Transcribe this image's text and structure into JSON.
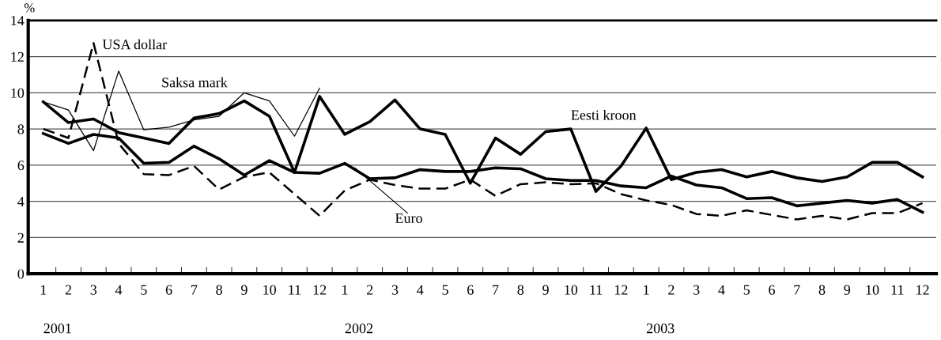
{
  "chart_data": {
    "type": "line",
    "ylabel": "%",
    "categories": [
      "1",
      "2",
      "3",
      "4",
      "5",
      "6",
      "7",
      "8",
      "9",
      "10",
      "11",
      "12",
      "1",
      "2",
      "3",
      "4",
      "5",
      "6",
      "7",
      "8",
      "9",
      "10",
      "11",
      "12",
      "1",
      "2",
      "3",
      "4",
      "5",
      "6",
      "7",
      "8",
      "9",
      "10",
      "11",
      "12"
    ],
    "series": [
      {
        "name": "Eesti kroon",
        "color": "#000000",
        "line_style": "solid",
        "values": [
          9.5,
          8.35,
          8.55,
          7.8,
          7.5,
          7.2,
          8.6,
          8.85,
          9.55,
          8.7,
          5.6,
          9.8,
          7.7,
          8.4,
          9.6,
          8.0,
          7.7,
          5.0,
          7.5,
          6.6,
          7.85,
          8.0,
          4.55,
          5.95,
          8.05,
          5.2,
          5.6,
          5.75,
          5.35,
          5.65,
          5.3,
          5.1,
          5.35,
          6.15,
          6.15,
          5.35
        ]
      },
      {
        "name": "Euro",
        "color": "#000000",
        "line_style": "solid",
        "values": [
          7.75,
          7.2,
          7.7,
          7.5,
          6.1,
          6.15,
          7.05,
          6.35,
          5.45,
          6.25,
          5.6,
          5.55,
          6.1,
          5.25,
          5.3,
          5.75,
          5.65,
          5.65,
          5.85,
          5.8,
          5.25,
          5.15,
          5.15,
          4.85,
          4.75,
          5.4,
          4.9,
          4.75,
          4.15,
          4.2,
          3.75,
          3.9,
          4.05,
          3.9,
          4.1,
          3.4
        ]
      },
      {
        "name": "USA dollar",
        "color": "#000000",
        "line_style": "dashed",
        "values": [
          8.0,
          7.5,
          12.75,
          7.2,
          5.5,
          5.45,
          5.95,
          4.65,
          5.35,
          5.6,
          4.4,
          3.2,
          4.6,
          5.2,
          4.9,
          4.7,
          4.7,
          5.2,
          4.3,
          4.95,
          5.05,
          4.95,
          5.0,
          4.4,
          4.05,
          3.8,
          3.3,
          3.2,
          3.5,
          3.25,
          3.0,
          3.2,
          3.0,
          3.35,
          3.35,
          3.9
        ]
      },
      {
        "name": "Saksa mark",
        "color": "#000000",
        "line_style": "solid",
        "values": [
          9.5,
          9.05,
          6.8,
          11.2,
          7.95,
          8.1,
          8.5,
          8.7,
          10.0,
          9.55,
          7.6,
          10.25,
          null,
          null,
          null,
          null,
          null,
          null,
          null,
          null,
          null,
          null,
          null,
          null,
          null,
          null,
          null,
          null,
          null,
          null,
          null,
          null,
          null,
          null,
          null,
          null
        ]
      }
    ],
    "ylim": [
      0,
      14
    ],
    "yticks": [
      0,
      2,
      4,
      6,
      8,
      10,
      12,
      14
    ],
    "grid": "y",
    "legend": false,
    "annotations": [
      "2001",
      "2002",
      "2003"
    ]
  }
}
